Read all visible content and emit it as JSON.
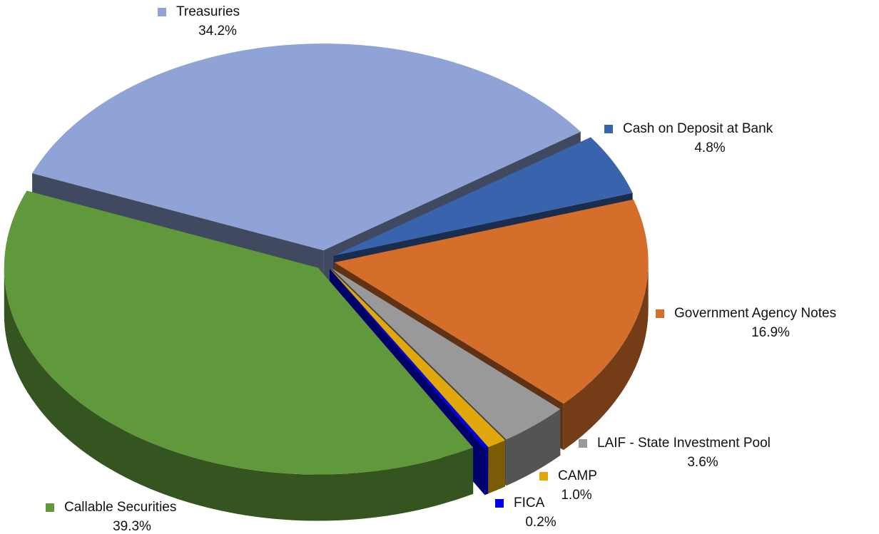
{
  "chart_data": {
    "type": "pie",
    "categories": [
      "Cash on Deposit at Bank",
      "Government Agency Notes",
      "LAIF - State Investment Pool",
      "CAMP",
      "FICA",
      "Callable Securities",
      "Treasuries"
    ],
    "values": [
      4.8,
      16.9,
      3.6,
      1.0,
      0.2,
      39.3,
      34.2
    ],
    "value_labels": [
      "4.8%",
      "16.9%",
      "3.6%",
      "1.0%",
      "0.2%",
      "39.3%",
      "34.2%"
    ],
    "colors": [
      "#3A63AE",
      "#D46E2A",
      "#999999",
      "#E0A80A",
      "#0000EE",
      "#5F993B",
      "#8FA3D6"
    ]
  }
}
